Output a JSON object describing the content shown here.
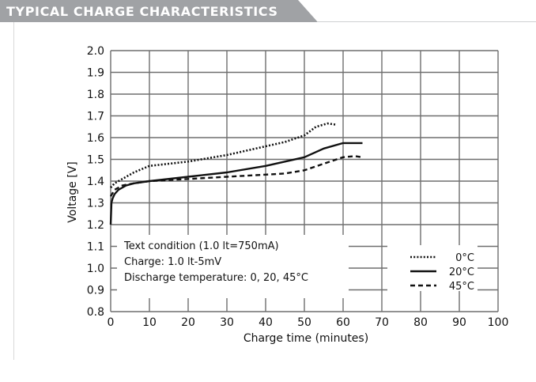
{
  "header": {
    "title": "TYPICAL CHARGE CHARACTERISTICS",
    "background": "#a0a2a5"
  },
  "chart_data": {
    "type": "line",
    "title": "",
    "xlabel": "Charge time (minutes)",
    "ylabel": "Voltage [V]",
    "xlim": [
      0,
      100
    ],
    "ylim": [
      0.8,
      2.0
    ],
    "xticks": [
      "0",
      "10",
      "20",
      "30",
      "40",
      "50",
      "60",
      "70",
      "80",
      "90",
      "100"
    ],
    "yticks": [
      "0.8",
      "0.9",
      "1.0",
      "1.1",
      "1.2",
      "1.3",
      "1.4",
      "1.5",
      "1.6",
      "1.7",
      "1.8",
      "1.9",
      "2.0"
    ],
    "grid": true,
    "legend_position": "bottom-right",
    "annotation": [
      "Text condition (1.0 lt=750mA)",
      "Charge: 1.0 lt-5mV",
      "Discharge temperature: 0, 20, 45°C"
    ],
    "series": [
      {
        "name": "0°C",
        "style": "dotted",
        "x": [
          0,
          1,
          3,
          6,
          10,
          20,
          30,
          40,
          45,
          50,
          53,
          56,
          58
        ],
        "y": [
          1.37,
          1.39,
          1.41,
          1.44,
          1.47,
          1.49,
          1.52,
          1.56,
          1.58,
          1.61,
          1.65,
          1.665,
          1.66
        ]
      },
      {
        "name": "20°C",
        "style": "solid",
        "x": [
          0,
          0.2,
          0.5,
          1,
          2,
          4,
          6,
          10,
          20,
          30,
          40,
          45,
          50,
          55,
          60,
          65
        ],
        "y": [
          1.2,
          1.3,
          1.32,
          1.34,
          1.36,
          1.38,
          1.39,
          1.4,
          1.42,
          1.44,
          1.47,
          1.49,
          1.51,
          1.55,
          1.575,
          1.575
        ]
      },
      {
        "name": "45°C",
        "style": "dashed",
        "x": [
          0,
          1,
          3,
          6,
          10,
          20,
          30,
          40,
          45,
          50,
          55,
          60,
          63,
          65
        ],
        "y": [
          1.33,
          1.36,
          1.38,
          1.39,
          1.4,
          1.41,
          1.42,
          1.43,
          1.435,
          1.45,
          1.48,
          1.51,
          1.515,
          1.51
        ]
      }
    ]
  }
}
